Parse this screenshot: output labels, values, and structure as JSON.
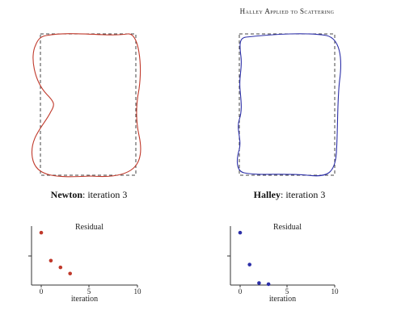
{
  "figure_title": "Halley Applied to Scattering",
  "panels": [
    {
      "method": "Newton",
      "caption_suffix": ": iteration 3",
      "color": "#c0392b"
    },
    {
      "method": "Halley",
      "caption_suffix": ": iteration 3",
      "color": "#2c2fa8"
    }
  ],
  "chart_data": [
    {
      "type": "scatter",
      "title": "Residual",
      "xlabel": "iteration",
      "ylabel": "",
      "xlim": [
        -1,
        10
      ],
      "xticks": [
        "0",
        "5",
        "10"
      ],
      "x": [
        0,
        1,
        2,
        3
      ],
      "y": [
        0.95,
        0.45,
        0.33,
        0.22
      ],
      "color": "#c0392b"
    },
    {
      "type": "scatter",
      "title": "Residual",
      "xlabel": "iteration",
      "ylabel": "",
      "xlim": [
        -1,
        10
      ],
      "xticks": [
        "0",
        "5",
        "10"
      ],
      "x": [
        0,
        1,
        2,
        3
      ],
      "y": [
        0.95,
        0.38,
        0.05,
        0.03
      ],
      "color": "#2c2fa8"
    }
  ]
}
